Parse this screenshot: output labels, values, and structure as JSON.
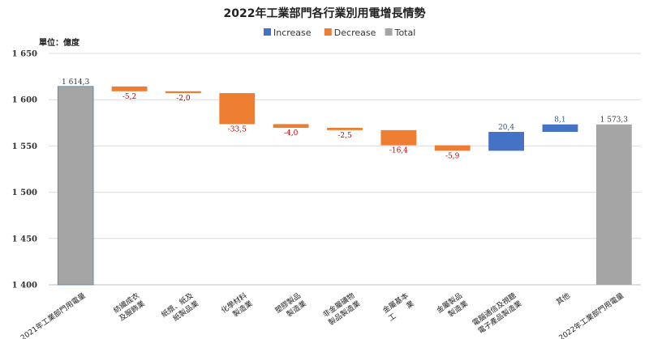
{
  "chart_data": {
    "type": "bar",
    "subtype": "waterfall",
    "title": "2022年工業部門各行業別用電增長情勢",
    "unit_label": "單位：億度",
    "ylim": [
      1400,
      1650
    ],
    "yticks": [
      1400,
      1450,
      1500,
      1550,
      1600,
      1650
    ],
    "ytick_labels": [
      "1 400",
      "1 450",
      "1 500",
      "1 550",
      "1 600",
      "1 650"
    ],
    "grid": true,
    "legend_position": "top-right",
    "legend": [
      {
        "name": "Increase",
        "color": "#4472C4"
      },
      {
        "name": "Decrease",
        "color": "#ED7D31"
      },
      {
        "name": "Total",
        "color": "#A5A5A5"
      }
    ],
    "categories": [
      [
        "2021年工業部門用電量"
      ],
      [
        "紡織成衣",
        "及服飾業"
      ],
      [
        "紙漿、紙及",
        "紙製品業"
      ],
      [
        "化學材料",
        "製造業"
      ],
      [
        "塑膠製品",
        "製造業"
      ],
      [
        "非金屬礦物",
        "製品製造業"
      ],
      [
        "金屬基本",
        "工　　業"
      ],
      [
        "金屬製品",
        "製造業"
      ],
      [
        "電腦通信及視聽",
        "電子產品製造業"
      ],
      [
        "其他"
      ],
      [
        "2022年工業部門用電量"
      ]
    ],
    "values": [
      1614.3,
      -5.2,
      -2.0,
      -33.5,
      -4.0,
      -2.5,
      -16.4,
      -5.9,
      20.4,
      8.1,
      1573.3
    ],
    "kinds": [
      "total",
      "decrease",
      "decrease",
      "decrease",
      "decrease",
      "decrease",
      "decrease",
      "decrease",
      "increase",
      "increase",
      "total"
    ],
    "data_labels": [
      "1 614,3",
      "-5,2",
      "-2,0",
      "-33,5",
      "-4,0",
      "-2,5",
      "-16,4",
      "-5,9",
      "20,4",
      "8,1",
      "1 573,3"
    ]
  }
}
